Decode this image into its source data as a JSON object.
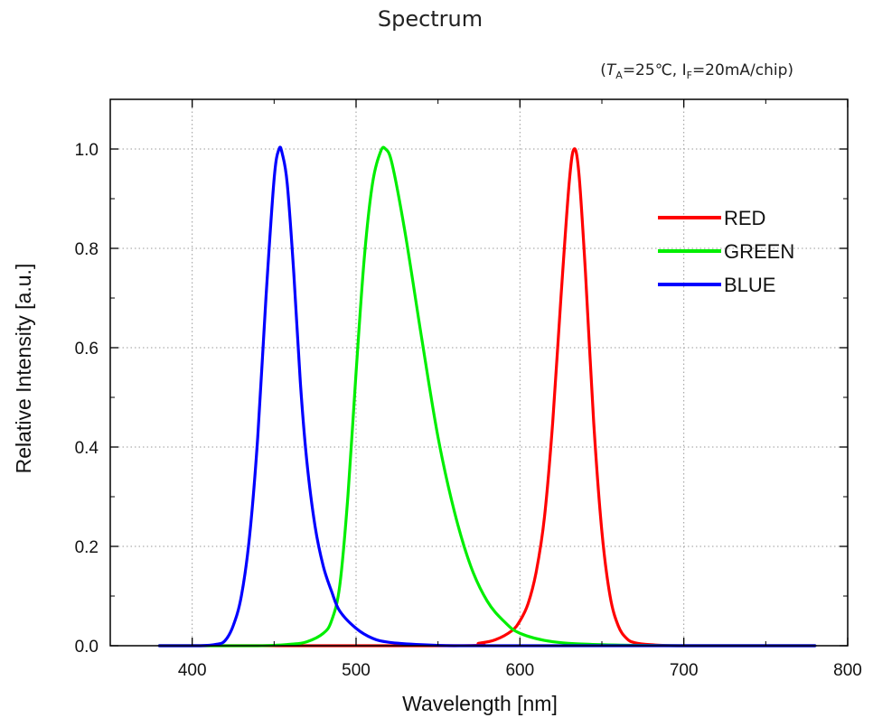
{
  "chart_data": {
    "type": "line",
    "title": "Spectrum",
    "subtitle": "(TA=25℃, IF=20mA/chip)",
    "subtitle_parts": {
      "open": "(",
      "t_main": "T",
      "t_sub": "A",
      "t_rest": "=25℃, I",
      "i_sub": "F",
      "i_rest": "=20mA/chip)"
    },
    "xlabel": "Wavelength [nm]",
    "ylabel": "Relative Intensity [a.u.]",
    "xlim": [
      350,
      800
    ],
    "ylim": [
      0,
      1.1
    ],
    "x_ticks": [
      400,
      500,
      600,
      700,
      800
    ],
    "y_ticks": [
      0.0,
      0.2,
      0.4,
      0.6,
      0.8,
      1.0
    ],
    "x_tick_labels": [
      "400",
      "500",
      "600",
      "700",
      "800"
    ],
    "y_tick_labels": [
      "0.0",
      "0.2",
      "0.4",
      "0.6",
      "0.8",
      "1.0"
    ],
    "grid": true,
    "legend_position": "top-right",
    "series": [
      {
        "name": "RED",
        "color": "#ff0000",
        "x": [
          380,
          560,
          575,
          585,
          595,
          600,
          605,
          610,
          615,
          620,
          625,
          630,
          633,
          636,
          640,
          645,
          650,
          655,
          660,
          665,
          670,
          680,
          700,
          780
        ],
        "y": [
          0,
          0,
          0.005,
          0.012,
          0.03,
          0.05,
          0.085,
          0.15,
          0.26,
          0.45,
          0.7,
          0.93,
          1.0,
          0.95,
          0.75,
          0.45,
          0.23,
          0.1,
          0.04,
          0.015,
          0.006,
          0.002,
          0,
          0
        ]
      },
      {
        "name": "GREEN",
        "color": "#00ee00",
        "x": [
          380,
          440,
          460,
          470,
          480,
          485,
          490,
          495,
          500,
          505,
          510,
          515,
          518,
          522,
          530,
          540,
          550,
          560,
          570,
          580,
          590,
          600,
          620,
          650,
          700,
          780
        ],
        "y": [
          0,
          0,
          0.003,
          0.008,
          0.025,
          0.05,
          0.12,
          0.3,
          0.55,
          0.78,
          0.93,
          0.995,
          1.0,
          0.97,
          0.83,
          0.62,
          0.42,
          0.27,
          0.16,
          0.09,
          0.05,
          0.025,
          0.008,
          0.002,
          0,
          0
        ]
      },
      {
        "name": "BLUE",
        "color": "#0000ff",
        "x": [
          380,
          405,
          415,
          420,
          425,
          430,
          435,
          440,
          445,
          450,
          453,
          455,
          458,
          462,
          466,
          470,
          475,
          480,
          485,
          490,
          500,
          510,
          520,
          540,
          560,
          600,
          780
        ],
        "y": [
          0,
          0,
          0.003,
          0.01,
          0.04,
          0.1,
          0.22,
          0.42,
          0.7,
          0.94,
          1.0,
          0.99,
          0.93,
          0.75,
          0.53,
          0.37,
          0.24,
          0.16,
          0.11,
          0.07,
          0.035,
          0.015,
          0.007,
          0.002,
          0,
          0,
          0
        ]
      }
    ]
  }
}
